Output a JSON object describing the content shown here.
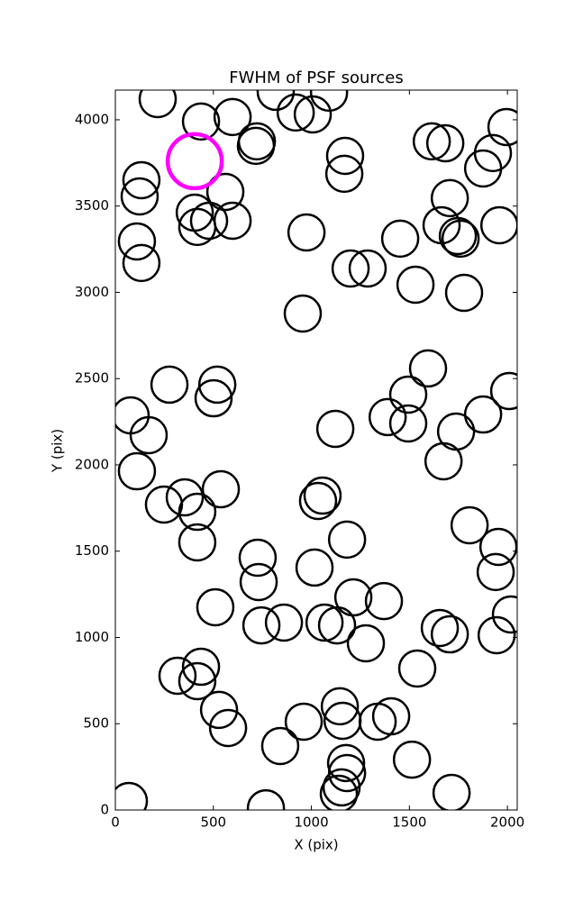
{
  "chart_data": {
    "type": "scatter",
    "title": "FWHM of PSF sources",
    "x_label": "X (pix)",
    "y_label": "Y (pix)",
    "xlim": [
      0,
      2050
    ],
    "ylim": [
      0,
      4172
    ],
    "xticks": [
      0,
      500,
      1000,
      1500,
      2000
    ],
    "yticks": [
      0,
      500,
      1000,
      1500,
      2000,
      2500,
      3000,
      3500,
      4000
    ],
    "series": [
      {
        "color": "#000000",
        "x": [
          216,
          437,
          598,
          818,
          920,
          1007,
          1090,
          722,
          717,
          133,
          124,
          1172,
          1168,
          561,
          405,
          418,
          478,
          598,
          110,
          133,
          975,
          1200,
          1287,
          1453,
          1531,
          956,
          1614,
          1683,
          1995,
          1926,
          1876,
          1706,
          1664,
          1747,
          1761,
          1959,
          1779,
          1595,
          1494,
          2009,
          276,
          520,
          501,
          78,
          170,
          1122,
          1389,
          1494,
          1738,
          1876,
          1674,
          110,
          538,
          248,
          354,
          418,
          418,
          1057,
          1034,
          1182,
          726,
          731,
          1016,
          1807,
          1954,
          1940,
          510,
          745,
          860,
          1067,
          1131,
          1214,
          1370,
          1278,
          1655,
          1706,
          2018,
          1945,
          317,
          437,
          418,
          529,
          575,
          1540,
          961,
          1145,
          1159,
          1338,
          1407,
          841,
          1513,
          1177,
          1182,
          1140,
          1154,
          1715,
          768,
          69
        ],
        "y": [
          4120,
          3990,
          4016,
          4162,
          4042,
          4031,
          4157,
          3875,
          3849,
          3650,
          3556,
          3791,
          3687,
          3582,
          3462,
          3379,
          3415,
          3415,
          3295,
          3170,
          3347,
          3138,
          3138,
          3311,
          3044,
          2877,
          3875,
          3864,
          3958,
          3807,
          3718,
          3546,
          3389,
          3326,
          3311,
          3389,
          2997,
          2559,
          2407,
          2428,
          2465,
          2465,
          2386,
          2287,
          2172,
          2209,
          2277,
          2240,
          2193,
          2292,
          2021,
          1963,
          1859,
          1770,
          1812,
          1728,
          1551,
          1822,
          1791,
          1567,
          1462,
          1321,
          1405,
          1650,
          1525,
          1379,
          1175,
          1070,
          1086,
          1086,
          1070,
          1232,
          1211,
          966,
          1055,
          1018,
          1133,
          1013,
          778,
          830,
          747,
          580,
          475,
          820,
          512,
          601,
          517,
          512,
          543,
          371,
          292,
          272,
          214,
          94,
          131,
          99,
          10,
          52
        ]
      },
      {
        "color": "#ff00ff",
        "x": [
          405
        ],
        "y": [
          3760
        ]
      }
    ]
  }
}
